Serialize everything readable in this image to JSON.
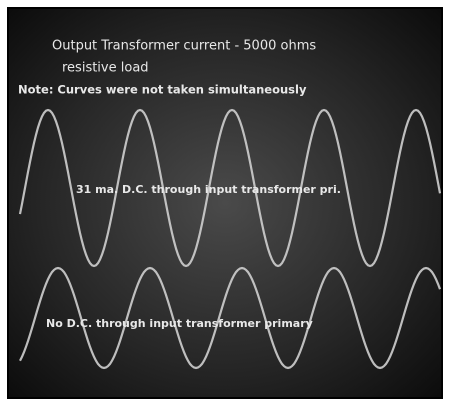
{
  "caption": {
    "line1": "Output Transformer current - 5000 ohms",
    "line2": "resistive load",
    "note": "Note: Curves were not taken simultaneously"
  },
  "traces": [
    {
      "label": "31 ma. D.C. through input transformer pri."
    },
    {
      "label": "No D.C. through input transformer primary"
    }
  ]
}
